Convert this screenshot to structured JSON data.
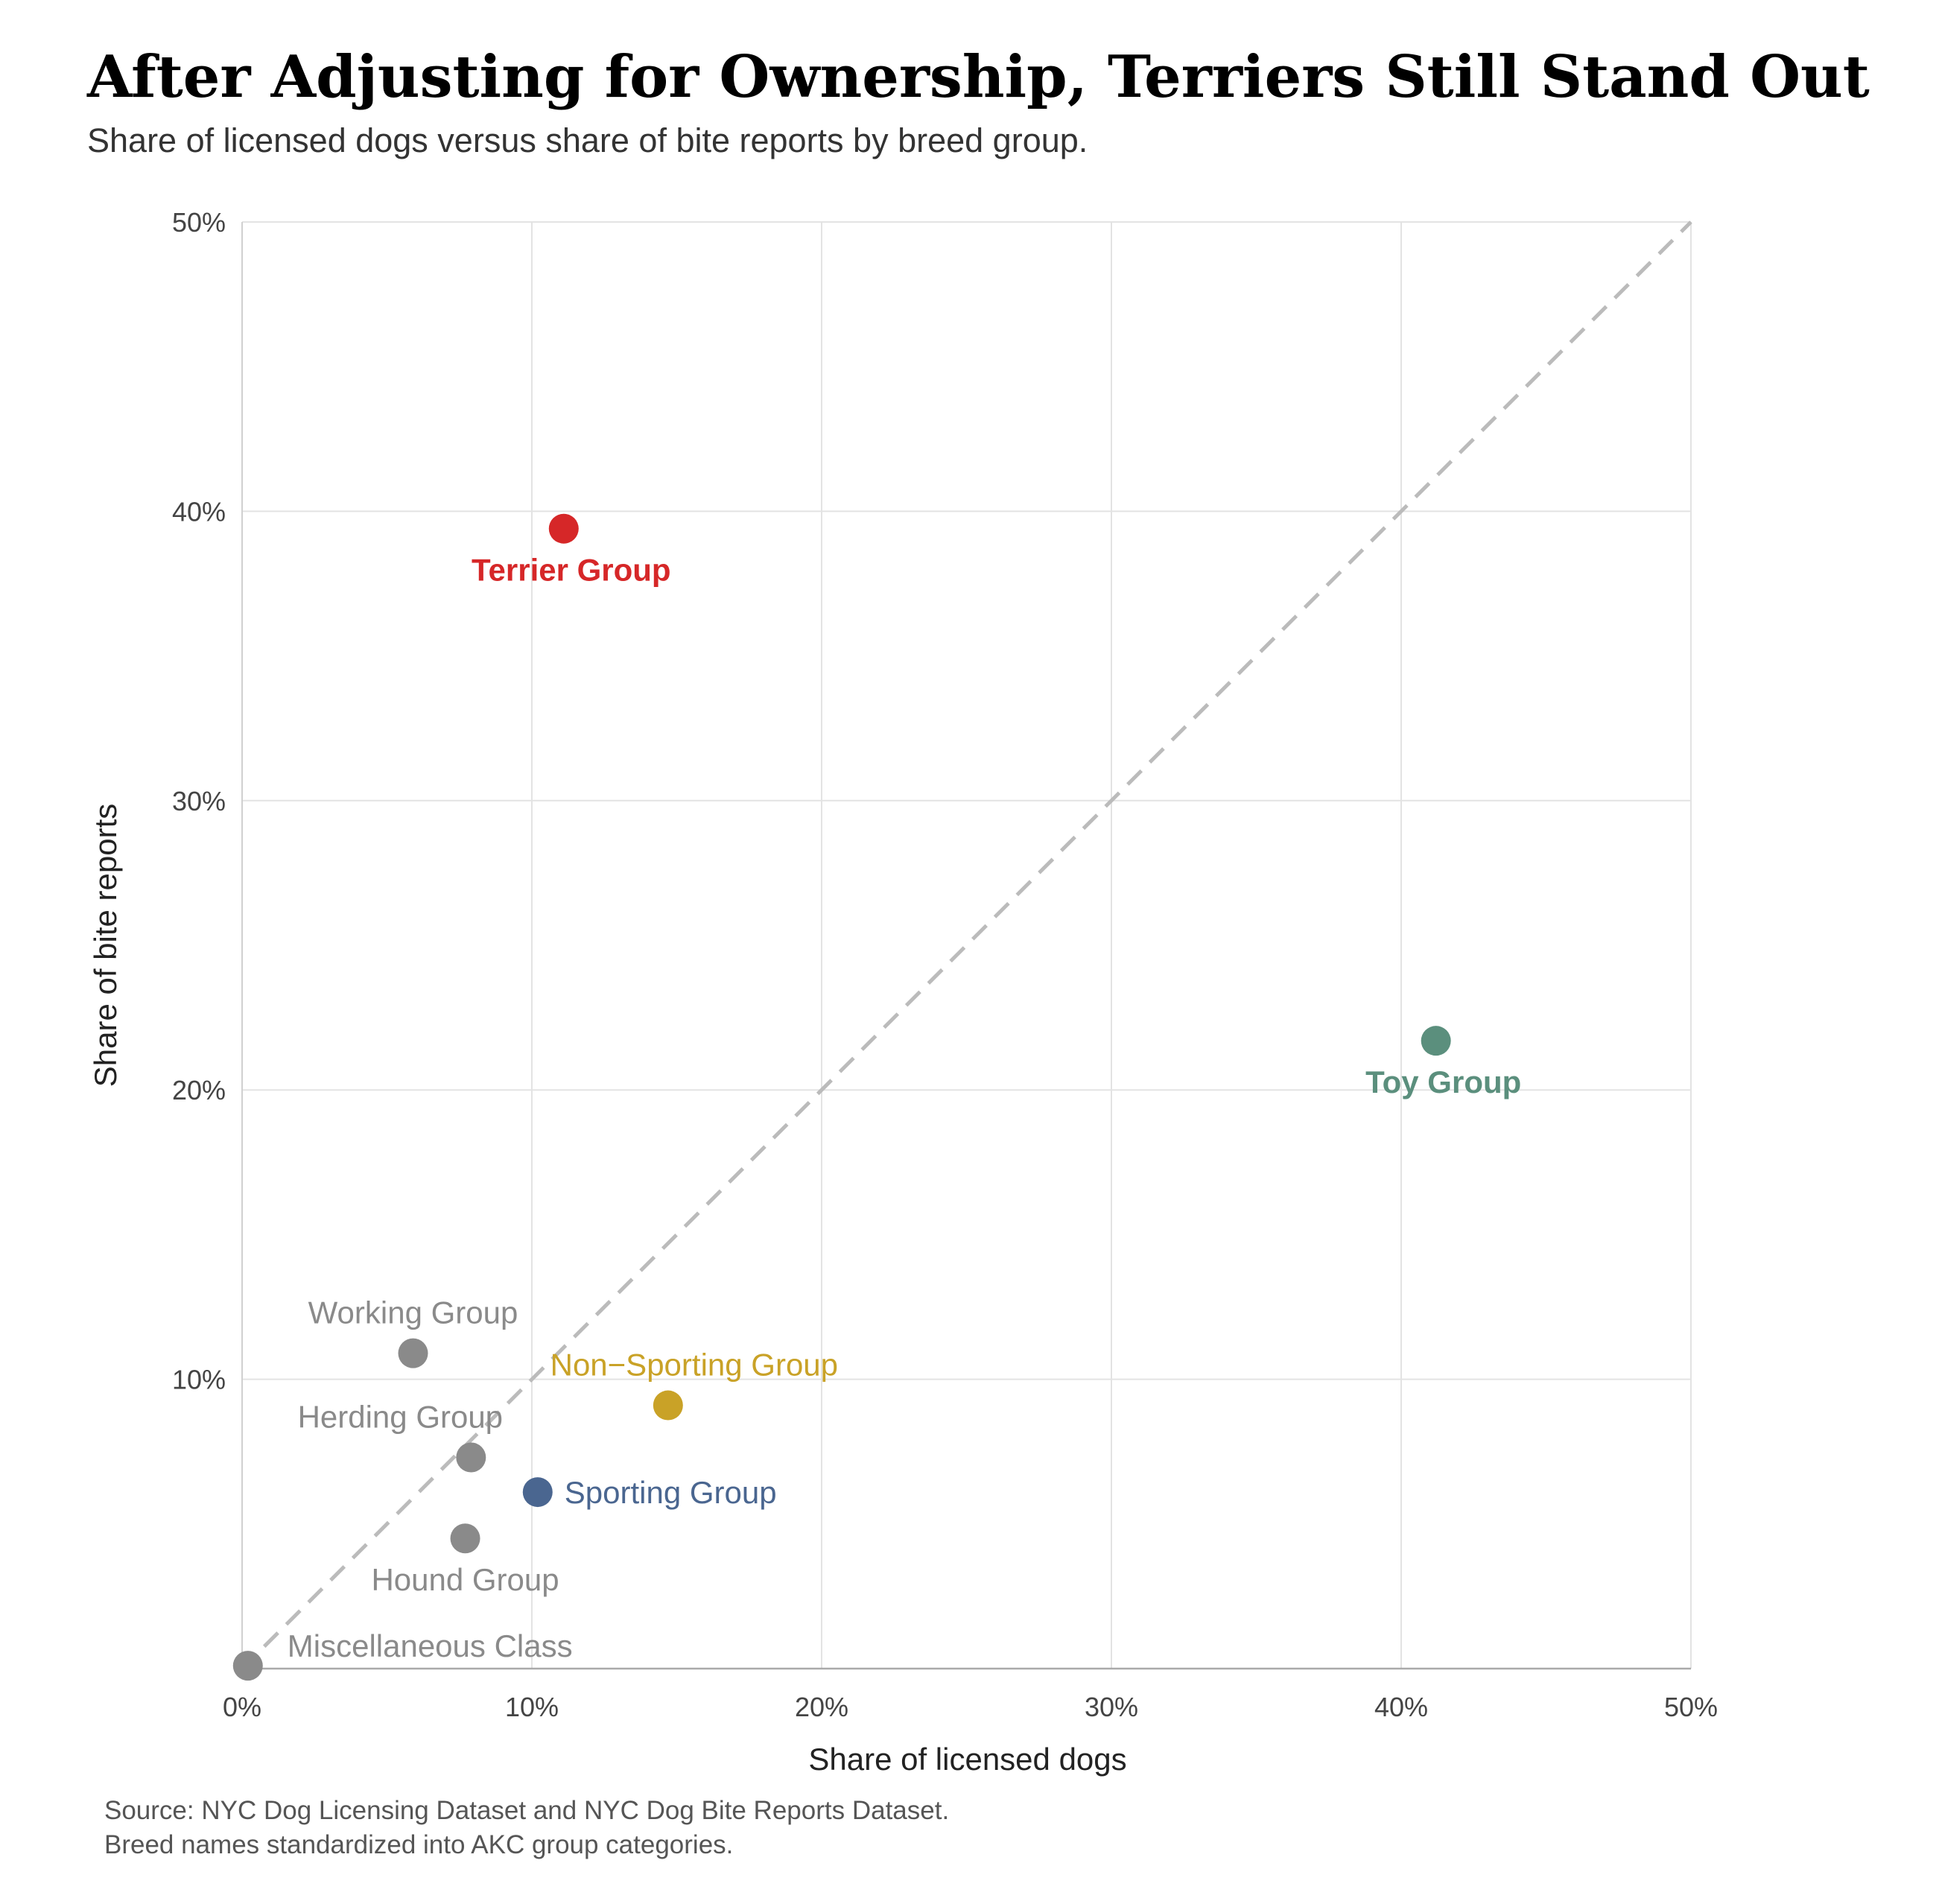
{
  "title": "After Adjusting for Ownership, Terriers Still Stand Out",
  "subtitle": "Share of licensed dogs versus share of bite reports by breed group.",
  "source": {
    "line1": "Source: NYC Dog Licensing Dataset and NYC Dog Bite Reports Dataset.",
    "line2": "Breed names standardized into AKC group categories."
  },
  "chart_data": {
    "type": "scatter",
    "xlabel": "Share of licensed dogs",
    "ylabel": "Share of bite reports",
    "xlim": [
      0,
      0.5
    ],
    "ylim": [
      0,
      0.5
    ],
    "x_ticks": [
      0,
      0.1,
      0.2,
      0.3,
      0.4,
      0.5
    ],
    "x_tick_labels": [
      "0%",
      "10%",
      "20%",
      "30%",
      "40%",
      "50%"
    ],
    "y_ticks": [
      0.1,
      0.2,
      0.3,
      0.4,
      0.5
    ],
    "y_tick_labels": [
      "10%",
      "20%",
      "30%",
      "40%",
      "50%"
    ],
    "grid": true,
    "reference_line": {
      "style": "dashed",
      "from": [
        0,
        0
      ],
      "to": [
        0.5,
        0.5
      ],
      "color": "#bbbbbb"
    },
    "points": [
      {
        "label": "Terrier Group",
        "x": 0.111,
        "y": 0.394,
        "color": "#d62728",
        "bold": true,
        "label_pos": "below"
      },
      {
        "label": "Toy Group",
        "x": 0.412,
        "y": 0.217,
        "color": "#5b8f7d",
        "bold": true,
        "label_pos": "below"
      },
      {
        "label": "Working Group",
        "x": 0.059,
        "y": 0.109,
        "color": "#8a8a8a",
        "bold": false,
        "label_pos": "above"
      },
      {
        "label": "Non−Sporting Group",
        "x": 0.147,
        "y": 0.091,
        "color": "#c9a227",
        "bold": false,
        "label_pos": "above"
      },
      {
        "label": "Herding Group",
        "x": 0.079,
        "y": 0.073,
        "color": "#8a8a8a",
        "bold": false,
        "label_pos": "above-left"
      },
      {
        "label": "Sporting Group",
        "x": 0.102,
        "y": 0.061,
        "color": "#4a6690",
        "bold": false,
        "label_pos": "right"
      },
      {
        "label": "Hound Group",
        "x": 0.077,
        "y": 0.045,
        "color": "#8a8a8a",
        "bold": false,
        "label_pos": "below"
      },
      {
        "label": "Miscellaneous Class",
        "x": 0.002,
        "y": 0.001,
        "color": "#8a8a8a",
        "bold": false,
        "label_pos": "right"
      }
    ]
  }
}
